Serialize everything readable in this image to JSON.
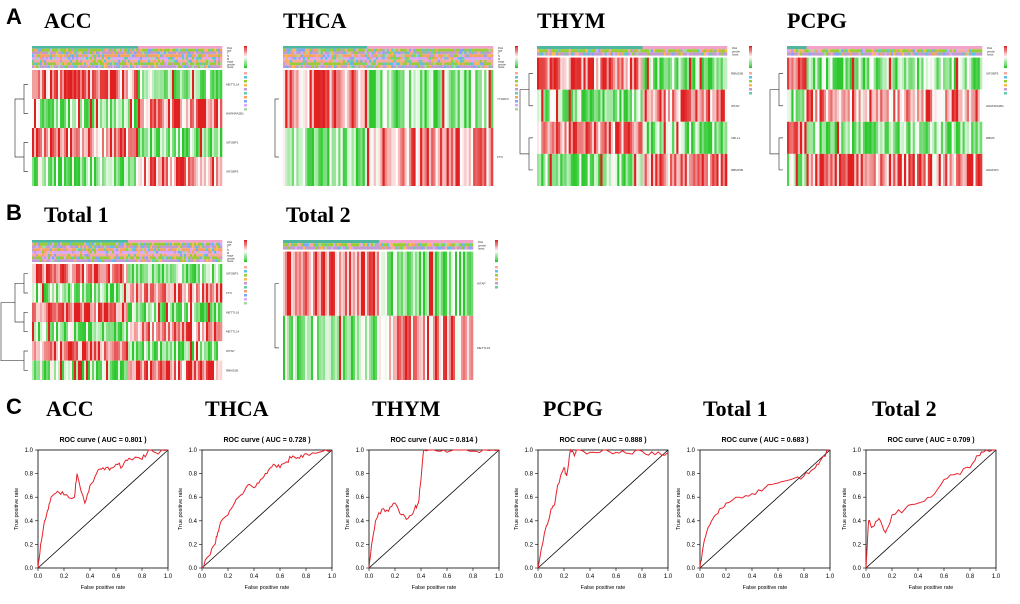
{
  "figure": {
    "section_labels": [
      "A",
      "B",
      "C"
    ],
    "heatmap_titles_a": [
      "ACC",
      "THCA",
      "THYM",
      "PCPG"
    ],
    "heatmap_titles_b": [
      "Total 1",
      "Total 2"
    ],
    "roc_panel_titles": [
      "ACC",
      "THCA",
      "THYM",
      "PCPG",
      "Total 1",
      "Total 2"
    ]
  },
  "heatmaps": [
    {
      "title": "ACC",
      "genes": [
        "METTL14",
        "HNRNPA2B1",
        "IGF2BP1",
        "IGF2BP3"
      ],
      "annotations": [
        "Risk",
        "age",
        "T",
        "N",
        "M",
        "stage",
        "gender",
        "fustat"
      ]
    },
    {
      "title": "THCA",
      "genes": [
        "YTHDF3",
        "FTO"
      ],
      "annotations": [
        "Risk",
        "age",
        "T",
        "N",
        "M",
        "stage",
        "gender",
        "fustat"
      ]
    },
    {
      "title": "THYM",
      "genes": [
        "RBM15B",
        "WTAP",
        "CBLL1",
        "RBM15B"
      ],
      "annotations": [
        "Risk",
        "gender",
        "fustat"
      ]
    },
    {
      "title": "PCPG",
      "genes": [
        "IGF2BP3",
        "HNRNPA2B1",
        "RBMX",
        "HNRNPC"
      ],
      "annotations": [
        "Risk",
        "gender",
        "fustat"
      ]
    },
    {
      "title": "Total 1",
      "genes": [
        "IGF2BP1",
        "FTO",
        "METTL16",
        "METTL14",
        "WTAP",
        "RBM15B"
      ],
      "annotations": [
        "Risk",
        "age",
        "T",
        "N",
        "M",
        "stage",
        "gender",
        "fustat"
      ]
    },
    {
      "title": "Total 2",
      "genes": [
        "WTAP",
        "METTL16"
      ],
      "annotations": [
        "Risk",
        "gender",
        "fustat"
      ]
    }
  ],
  "chart_data": [
    {
      "type": "line",
      "title": "ROC curve ( AUC =  0.801 )",
      "panel": "ACC",
      "xlabel": "False positive rate",
      "ylabel": "True positive rate",
      "xlim": [
        0,
        1
      ],
      "ylim": [
        0,
        1
      ],
      "x": [
        0,
        0.02,
        0.05,
        0.08,
        0.1,
        0.15,
        0.2,
        0.28,
        0.3,
        0.36,
        0.4,
        0.45,
        0.5,
        0.55,
        0.6,
        0.65,
        0.7,
        0.8,
        0.85,
        0.9,
        1.0
      ],
      "y": [
        0,
        0.2,
        0.4,
        0.5,
        0.6,
        0.65,
        0.62,
        0.6,
        0.8,
        0.55,
        0.7,
        0.8,
        0.85,
        0.83,
        0.88,
        0.86,
        0.93,
        0.92,
        1.0,
        0.98,
        1.0
      ]
    },
    {
      "type": "line",
      "title": "ROC curve ( AUC =  0.728 )",
      "panel": "THCA",
      "xlabel": "False positive rate",
      "ylabel": "True positive rate",
      "xlim": [
        0,
        1
      ],
      "ylim": [
        0,
        1
      ],
      "x": [
        0,
        0.05,
        0.1,
        0.12,
        0.15,
        0.2,
        0.25,
        0.3,
        0.35,
        0.4,
        0.45,
        0.5,
        0.55,
        0.6,
        0.65,
        0.7,
        0.75,
        0.8,
        0.9,
        1.0
      ],
      "y": [
        0,
        0.1,
        0.2,
        0.3,
        0.4,
        0.45,
        0.55,
        0.62,
        0.7,
        0.68,
        0.75,
        0.8,
        0.88,
        0.85,
        0.9,
        0.95,
        0.93,
        0.97,
        0.98,
        1.0
      ]
    },
    {
      "type": "line",
      "title": "ROC curve ( AUC =  0.814 )",
      "panel": "THYM",
      "xlabel": "False positive rate",
      "ylabel": "True positive rate",
      "xlim": [
        0,
        1
      ],
      "ylim": [
        0,
        1
      ],
      "x": [
        0,
        0.02,
        0.05,
        0.1,
        0.15,
        0.2,
        0.25,
        0.3,
        0.35,
        0.38,
        0.4,
        0.42,
        0.5,
        0.6,
        0.7,
        0.8,
        0.9,
        1.0
      ],
      "y": [
        0,
        0.2,
        0.4,
        0.5,
        0.48,
        0.55,
        0.45,
        0.42,
        0.5,
        0.55,
        0.75,
        1.0,
        1.0,
        0.98,
        1.0,
        0.99,
        1.0,
        1.0
      ]
    },
    {
      "type": "line",
      "title": "ROC curve ( AUC =  0.888 )",
      "panel": "PCPG",
      "xlabel": "False positive rate",
      "ylabel": "True positive rate",
      "xlim": [
        0,
        1
      ],
      "ylim": [
        0,
        1
      ],
      "x": [
        0,
        0.05,
        0.08,
        0.1,
        0.13,
        0.15,
        0.2,
        0.22,
        0.25,
        0.28,
        0.3,
        0.4,
        0.5,
        0.6,
        0.7,
        0.8,
        0.9,
        1.0
      ],
      "y": [
        0,
        0.3,
        0.4,
        0.5,
        0.55,
        0.7,
        0.85,
        0.78,
        1.0,
        0.95,
        1.0,
        0.98,
        1.0,
        0.98,
        0.97,
        0.99,
        0.96,
        0.98
      ]
    },
    {
      "type": "line",
      "title": "ROC curve ( AUC =  0.683 )",
      "panel": "Total 1",
      "xlabel": "False positive rate",
      "ylabel": "True positive rate",
      "xlim": [
        0,
        1
      ],
      "ylim": [
        0,
        1
      ],
      "x": [
        0,
        0.02,
        0.05,
        0.1,
        0.15,
        0.2,
        0.3,
        0.4,
        0.5,
        0.6,
        0.7,
        0.8,
        0.85,
        0.9,
        0.95,
        1.0
      ],
      "y": [
        0,
        0.15,
        0.3,
        0.42,
        0.5,
        0.55,
        0.6,
        0.63,
        0.68,
        0.72,
        0.75,
        0.78,
        0.82,
        0.88,
        0.95,
        1.0
      ]
    },
    {
      "type": "line",
      "title": "ROC curve ( AUC =  0.709 )",
      "panel": "Total 2",
      "xlabel": "False positive rate",
      "ylabel": "True positive rate",
      "xlim": [
        0,
        1
      ],
      "ylim": [
        0,
        1
      ],
      "x": [
        0,
        0.02,
        0.05,
        0.1,
        0.15,
        0.2,
        0.3,
        0.4,
        0.5,
        0.6,
        0.7,
        0.8,
        0.85,
        0.9,
        1.0
      ],
      "y": [
        0,
        0.4,
        0.35,
        0.42,
        0.3,
        0.45,
        0.5,
        0.55,
        0.6,
        0.75,
        0.8,
        0.85,
        0.95,
        0.98,
        1.0
      ]
    }
  ],
  "ticks": [
    "0.0",
    "0.2",
    "0.4",
    "0.6",
    "0.8",
    "1.0"
  ],
  "colors": {
    "high": "#e02020",
    "low": "#2ec82e",
    "mid": "#ffffff",
    "roc": "#e8202a",
    "diag": "#000000"
  }
}
